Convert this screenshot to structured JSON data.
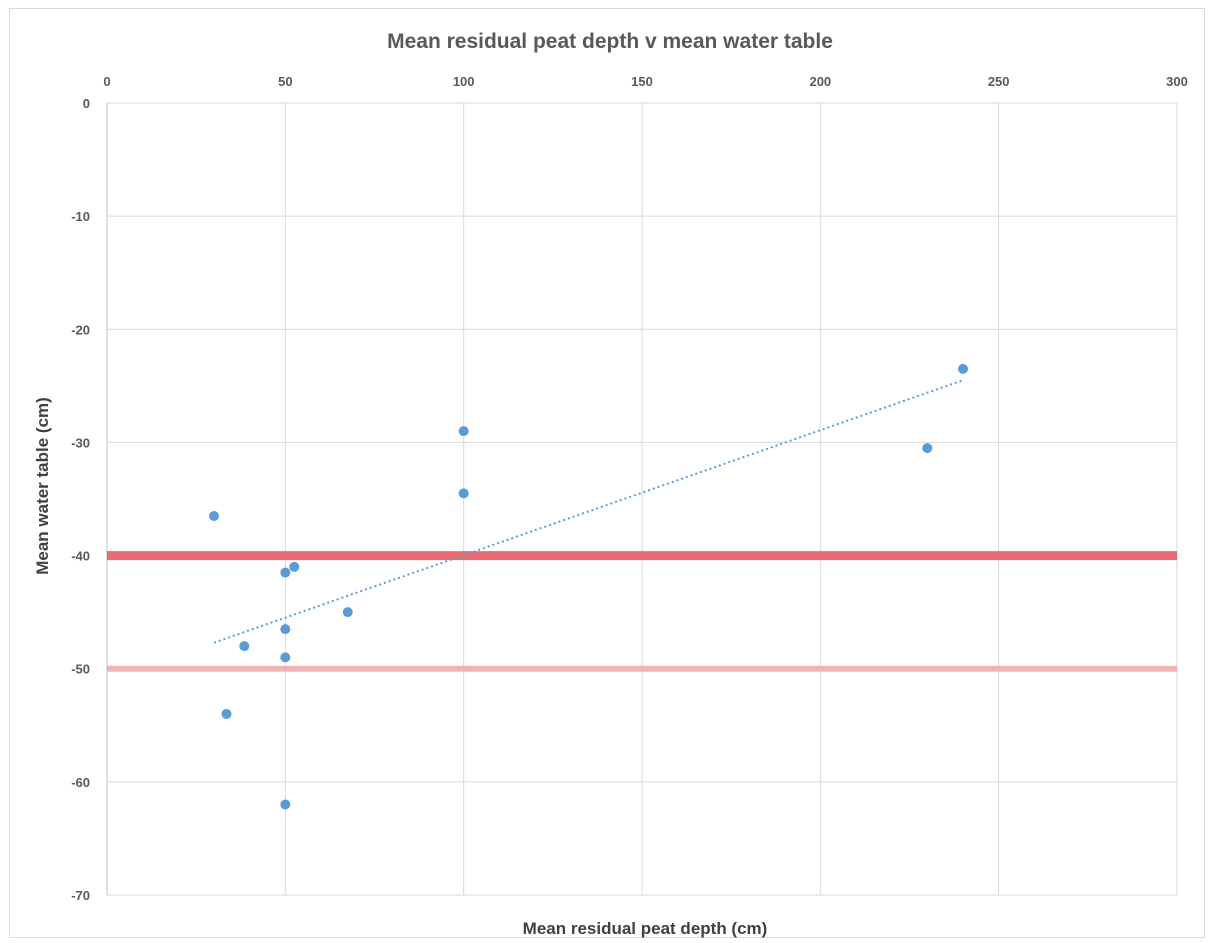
{
  "chart_data": {
    "type": "scatter",
    "title": "Mean residual peat depth v mean water table",
    "xlabel": "Mean residual peat depth (cm)",
    "ylabel": "Mean water table (cm)",
    "xlim": [
      0,
      300
    ],
    "ylim": [
      -70,
      0
    ],
    "x_axis_position": "top",
    "x_ticks": [
      "0",
      "50",
      "100",
      "150",
      "200",
      "250",
      "300"
    ],
    "y_ticks": [
      "0",
      "-10",
      "-20",
      "-30",
      "-40",
      "-50",
      "-60",
      "-70"
    ],
    "grid": true,
    "series": [
      {
        "points": [
          {
            "x": 30,
            "y": -36.5
          },
          {
            "x": 33.5,
            "y": -54
          },
          {
            "x": 38.5,
            "y": -48
          },
          {
            "x": 50,
            "y": -41.5
          },
          {
            "x": 52.5,
            "y": -41
          },
          {
            "x": 50,
            "y": -46.5
          },
          {
            "x": 50,
            "y": -49
          },
          {
            "x": 50,
            "y": -62
          },
          {
            "x": 67.5,
            "y": -45
          },
          {
            "x": 100,
            "y": -29
          },
          {
            "x": 100,
            "y": -34.5
          },
          {
            "x": 230,
            "y": -30.5
          },
          {
            "x": 240,
            "y": -23.5
          }
        ],
        "color": "#5b9bd5"
      }
    ],
    "trendline": {
      "type": "linear",
      "x_range": [
        30,
        240
      ],
      "y_range": [
        -47.7,
        -24.5
      ],
      "style": "dotted",
      "color": "#5b9bd5"
    },
    "reference_lines": [
      {
        "y": -40,
        "color": "#e8505b"
      },
      {
        "y": -50,
        "color": "#f0a8a8"
      }
    ]
  }
}
